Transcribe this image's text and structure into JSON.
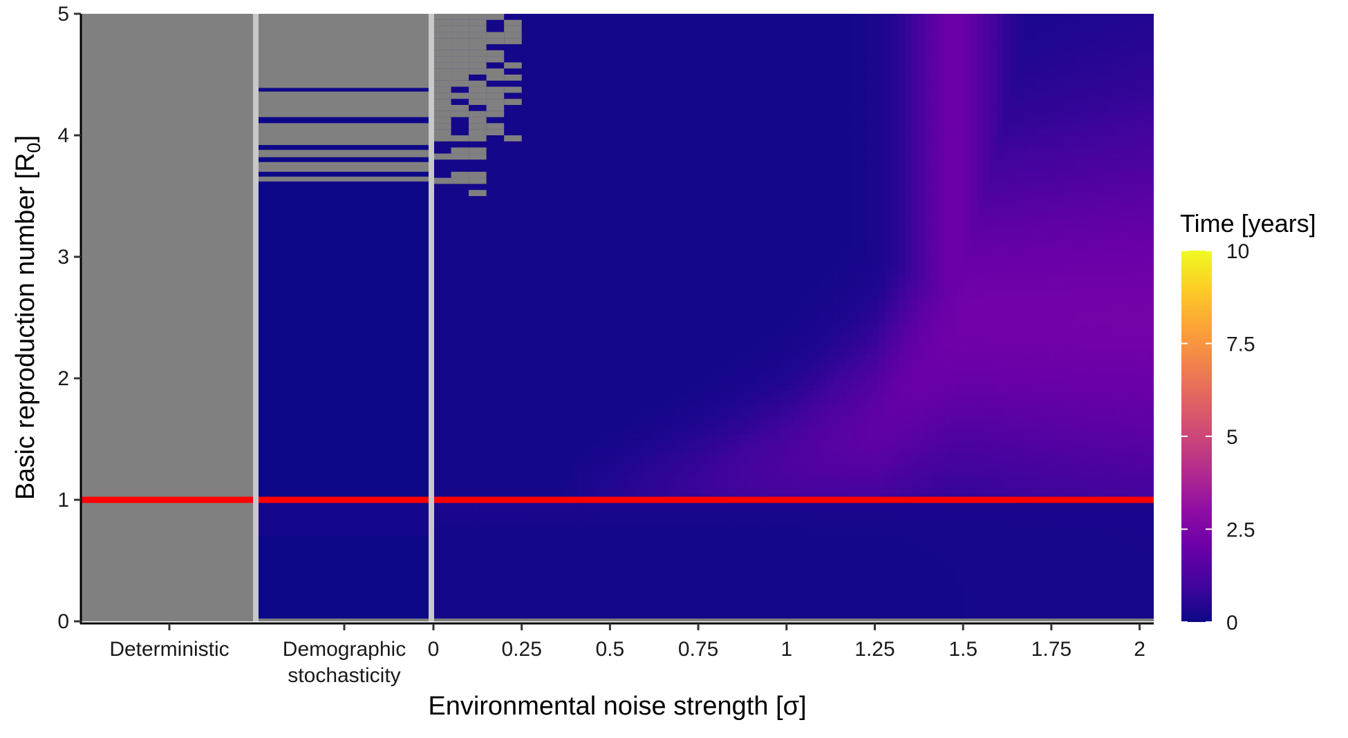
{
  "chart_data": {
    "type": "heatmap",
    "title": "",
    "xlabel": "Environmental noise strength [σ]",
    "ylabel_text": "Basic reproduction number  [R",
    "ylabel_subscript": "0",
    "ylabel_close": "]",
    "ylim": [
      0,
      5
    ],
    "y_ticks": [
      0,
      1,
      2,
      3,
      4,
      5
    ],
    "y_tick_labels": [
      "0",
      "1",
      "2",
      "3",
      "4",
      "5"
    ],
    "x_categorical_labels": [
      [
        "Deterministic"
      ],
      [
        "Demographic",
        "stochasticity"
      ]
    ],
    "x_noise_ticks": [
      0,
      0.25,
      0.5,
      0.75,
      1,
      1.25,
      1.5,
      1.75,
      2
    ],
    "x_noise_tick_labels": [
      "0",
      "0.25",
      "0.5",
      "0.75",
      "1",
      "1.25",
      "1.5",
      "1.75",
      "2"
    ],
    "x_noise_range": [
      0,
      2
    ],
    "threshold_R0": 1,
    "threshold_color": "#ff0000",
    "na_color": "#808080",
    "separator_color": "#c8c8c8",
    "legend": {
      "title": "Time [years]",
      "position": "right",
      "ticks": [
        0,
        2.5,
        5,
        7.5,
        10
      ],
      "tick_labels": [
        "0",
        "2.5",
        "5",
        "7.5",
        "10"
      ],
      "range": [
        0,
        10
      ],
      "colormap": [
        "#0d0887",
        "#41049d",
        "#6a00a8",
        "#8f0da4",
        "#b12a90",
        "#cc4778",
        "#e16462",
        "#f2844b",
        "#fca636",
        "#fcce25",
        "#f0f921"
      ]
    },
    "panels": [
      {
        "name": "Deterministic",
        "time_below_threshold": null,
        "time_above_threshold": null
      },
      {
        "name": "Demographic stochasticity",
        "time_below_threshold": 0.3,
        "time_above_threshold": 0.0,
        "no_data_R0_bands": [
          [
            3.62,
            3.66
          ],
          [
            3.7,
            3.78
          ],
          [
            3.82,
            3.88
          ],
          [
            3.92,
            4.1
          ],
          [
            4.15,
            4.36
          ],
          [
            4.39,
            5.0
          ]
        ]
      },
      {
        "name": "Environmental noise",
        "peak_time_years": 2.0,
        "ridge": [
          {
            "sigma": 0.5,
            "R0": 1.05,
            "time": 0.3
          },
          {
            "sigma": 0.75,
            "R0": 1.15,
            "time": 0.6
          },
          {
            "sigma": 1.0,
            "R0": 1.3,
            "time": 1.0
          },
          {
            "sigma": 1.25,
            "R0": 1.6,
            "time": 1.4
          },
          {
            "sigma": 1.5,
            "R0": 2.5,
            "time": 1.7
          },
          {
            "sigma": 1.5,
            "R0": 4.5,
            "time": 2.0
          }
        ]
      }
    ]
  }
}
